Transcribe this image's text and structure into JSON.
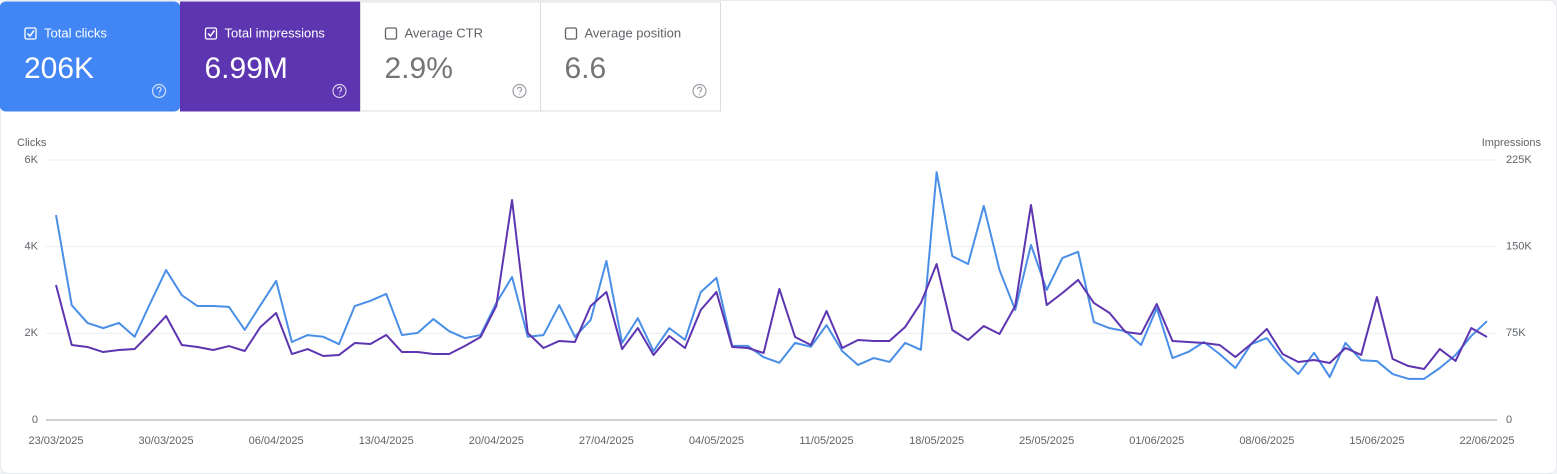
{
  "metrics": [
    {
      "label": "Total clicks",
      "value": "206K",
      "checked": true,
      "color": "#4285f4"
    },
    {
      "label": "Total impressions",
      "value": "6.99M",
      "checked": true,
      "color": "#5e35b1"
    },
    {
      "label": "Average CTR",
      "value": "2.9%",
      "checked": false,
      "color": "#ffffff"
    },
    {
      "label": "Average position",
      "value": "6.6",
      "checked": false,
      "color": "#ffffff"
    }
  ],
  "chart_data": {
    "type": "line",
    "x": [
      "23/03/2025",
      "24/03/2025",
      "25/03/2025",
      "26/03/2025",
      "27/03/2025",
      "28/03/2025",
      "29/03/2025",
      "30/03/2025",
      "31/03/2025",
      "01/04/2025",
      "02/04/2025",
      "03/04/2025",
      "04/04/2025",
      "05/04/2025",
      "06/04/2025",
      "07/04/2025",
      "08/04/2025",
      "09/04/2025",
      "10/04/2025",
      "11/04/2025",
      "12/04/2025",
      "13/04/2025",
      "14/04/2025",
      "15/04/2025",
      "16/04/2025",
      "17/04/2025",
      "18/04/2025",
      "19/04/2025",
      "20/04/2025",
      "21/04/2025",
      "22/04/2025",
      "23/04/2025",
      "24/04/2025",
      "25/04/2025",
      "26/04/2025",
      "27/04/2025",
      "28/04/2025",
      "29/04/2025",
      "30/04/2025",
      "01/05/2025",
      "02/05/2025",
      "03/05/2025",
      "04/05/2025",
      "05/05/2025",
      "06/05/2025",
      "07/05/2025",
      "08/05/2025",
      "09/05/2025",
      "10/05/2025",
      "11/05/2025",
      "12/05/2025",
      "13/05/2025",
      "14/05/2025",
      "15/05/2025",
      "16/05/2025",
      "17/05/2025",
      "18/05/2025",
      "19/05/2025",
      "20/05/2025",
      "21/05/2025",
      "22/05/2025",
      "23/05/2025",
      "24/05/2025",
      "25/05/2025",
      "26/05/2025",
      "27/05/2025",
      "28/05/2025",
      "29/05/2025",
      "30/05/2025",
      "31/05/2025",
      "01/06/2025",
      "02/06/2025",
      "03/06/2025",
      "04/06/2025",
      "05/06/2025",
      "06/06/2025",
      "07/06/2025",
      "08/06/2025",
      "09/06/2025",
      "10/06/2025",
      "11/06/2025",
      "12/06/2025",
      "13/06/2025",
      "14/06/2025",
      "15/06/2025",
      "16/06/2025",
      "17/06/2025",
      "18/06/2025",
      "19/06/2025",
      "20/06/2025",
      "21/06/2025",
      "22/06/2025"
    ],
    "xtick_step": 7,
    "series": [
      {
        "name": "Clicks",
        "color": "#4a8fe7",
        "values": [
          4730,
          2650,
          2240,
          2120,
          2240,
          1920,
          2700,
          3460,
          2880,
          2630,
          2630,
          2610,
          2080,
          2650,
          3210,
          1800,
          1960,
          1920,
          1750,
          2630,
          2750,
          2910,
          1960,
          2010,
          2330,
          2050,
          1890,
          1960,
          2700,
          3300,
          1920,
          1960,
          2650,
          1920,
          2310,
          3670,
          1780,
          2350,
          1590,
          2120,
          1850,
          2950,
          3280,
          1710,
          1710,
          1450,
          1320,
          1780,
          1690,
          2190,
          1590,
          1270,
          1430,
          1340,
          1780,
          1620,
          5720,
          3780,
          3600,
          4940,
          3460,
          2540,
          4040,
          3000,
          3740,
          3880,
          2260,
          2120,
          2050,
          1730,
          2580,
          1430,
          1570,
          1800,
          1520,
          1200,
          1750,
          1890,
          1410,
          1060,
          1550,
          990,
          1780,
          1380,
          1360,
          1060,
          950,
          950,
          1200,
          1500,
          1940,
          2280
        ]
      },
      {
        "name": "Impressions",
        "color": "#5e35b1",
        "axis": "y2",
        "values": [
          116800,
          64900,
          63200,
          58800,
          60600,
          61400,
          75300,
          90000,
          64900,
          63200,
          60600,
          64000,
          59700,
          80500,
          92600,
          57100,
          61400,
          55400,
          56300,
          66600,
          65800,
          73600,
          58800,
          58800,
          57100,
          57100,
          64000,
          71800,
          98700,
          190400,
          75300,
          62300,
          68400,
          67500,
          98700,
          110800,
          61400,
          79600,
          56300,
          72700,
          62300,
          95200,
          110800,
          63200,
          62300,
          58000,
          113400,
          71800,
          64900,
          94300,
          62300,
          69200,
          68400,
          68400,
          80500,
          101300,
          135000,
          77900,
          69200,
          81300,
          74400,
          98700,
          186100,
          99500,
          109900,
          121200,
          101300,
          92600,
          76200,
          74400,
          100400,
          68400,
          67500,
          66600,
          64900,
          54500,
          65800,
          78800,
          57100,
          50200,
          51900,
          49300,
          62300,
          56300,
          106400,
          52800,
          46700,
          44100,
          61400,
          51100,
          79600,
          71800
        ]
      }
    ],
    "ylim": [
      0,
      6000
    ],
    "yticks": [
      0,
      {
        "value": 2000,
        "label": "2K"
      },
      {
        "value": 4000,
        "label": "4K"
      },
      {
        "value": 6000,
        "label": "6K"
      }
    ],
    "y2lim": [
      0,
      225000
    ],
    "y2ticks": [
      0,
      {
        "value": 75000,
        "label": "75K"
      },
      {
        "value": 150000,
        "label": "150K"
      },
      {
        "value": 225000,
        "label": "225K"
      }
    ],
    "grid": true
  }
}
